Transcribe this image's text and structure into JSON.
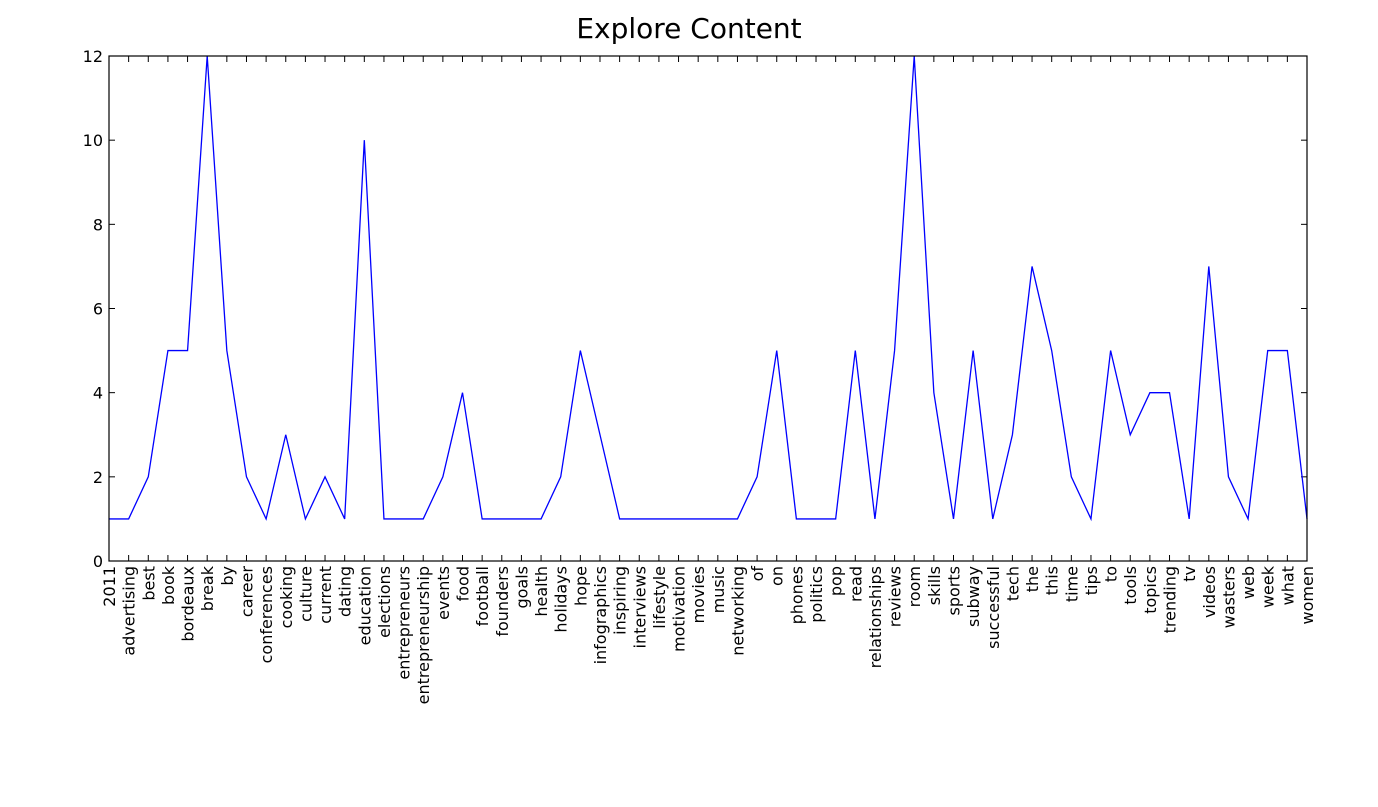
{
  "chart_data": {
    "type": "line",
    "title": "Explore Content",
    "xlabel": "",
    "ylabel": "",
    "ylim": [
      0,
      12
    ],
    "yticks": [
      0,
      2,
      4,
      6,
      8,
      10,
      12
    ],
    "grid": false,
    "legend": "none",
    "line_color": "#0000ff",
    "categories": [
      "2011",
      "advertising",
      "best",
      "book",
      "bordeaux",
      "break",
      "by",
      "career",
      "conferences",
      "cooking",
      "culture",
      "current",
      "dating",
      "education",
      "elections",
      "entrepreneurs",
      "entrepreneurship",
      "events",
      "food",
      "football",
      "founders",
      "goals",
      "health",
      "holidays",
      "hope",
      "infographics",
      "inspiring",
      "interviews",
      "lifestyle",
      "motivation",
      "movies",
      "music",
      "networking",
      "of",
      "on",
      "phones",
      "politics",
      "pop",
      "read",
      "relationships",
      "reviews",
      "room",
      "skills",
      "sports",
      "subway",
      "successful",
      "tech",
      "the",
      "this",
      "time",
      "tips",
      "to",
      "tools",
      "topics",
      "trending",
      "tv",
      "videos",
      "wasters",
      "web",
      "week",
      "what",
      "women"
    ],
    "values": [
      1,
      1,
      2,
      5,
      5,
      12,
      5,
      2,
      1,
      3,
      1,
      2,
      1,
      10,
      1,
      1,
      1,
      2,
      4,
      1,
      1,
      1,
      1,
      2,
      5,
      3,
      1,
      1,
      1,
      1,
      1,
      1,
      1,
      2,
      5,
      1,
      1,
      1,
      5,
      1,
      5,
      12,
      4,
      1,
      5,
      1,
      3,
      7,
      5,
      2,
      1,
      5,
      3,
      4,
      4,
      1,
      7,
      2,
      1,
      5,
      5,
      1
    ]
  }
}
